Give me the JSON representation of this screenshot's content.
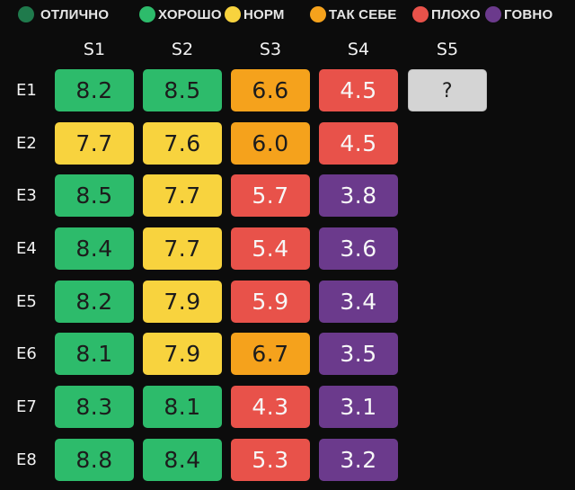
{
  "legend": {
    "items": [
      {
        "label": "ОТЛИЧНО",
        "color": "#1f7a4c",
        "icon": "circle-dot-icon"
      },
      {
        "label": "ХОРОШО",
        "color": "#2dbb6b",
        "icon": "circle-dot-icon"
      },
      {
        "label": "НОРМ",
        "color": "#f8d33e",
        "icon": "circle-dot-icon"
      },
      {
        "label": "ТАК СЕБЕ",
        "color": "#f5a21c",
        "icon": "circle-dot-icon"
      },
      {
        "label": "ПЛОХО",
        "color": "#e8524a",
        "icon": "circle-dot-icon"
      },
      {
        "label": "ГОВНО",
        "color": "#6b3a8c",
        "icon": "circle-dot-icon"
      }
    ]
  },
  "colors": {
    "background": "#0c0c0c",
    "good": "#2dbb6b",
    "norm": "#f8d33e",
    "meh": "#f5a21c",
    "bad": "#e8524a",
    "awful": "#6b3a8c",
    "unknown": "#d4d4d4"
  },
  "table": {
    "columns": [
      "S1",
      "S2",
      "S3",
      "S4",
      "S5"
    ],
    "rows": [
      "E1",
      "E2",
      "E3",
      "E4",
      "E5",
      "E6",
      "E7",
      "E8"
    ]
  },
  "chart_data": {
    "type": "heatmap",
    "title": "",
    "xlabel": "",
    "ylabel": "",
    "x": [
      "S1",
      "S2",
      "S3",
      "S4",
      "S5"
    ],
    "y": [
      "E1",
      "E2",
      "E3",
      "E4",
      "E5",
      "E6",
      "E7",
      "E8"
    ],
    "legend": [
      "ОТЛИЧНО",
      "ХОРОШО",
      "НОРМ",
      "ТАК СЕБЕ",
      "ПЛОХО",
      "ГОВНО"
    ],
    "legend_position": "top",
    "values": [
      [
        "8.2",
        "8.5",
        "6.6",
        "4.5",
        "?"
      ],
      [
        "7.7",
        "7.6",
        "6.0",
        "4.5",
        null
      ],
      [
        "8.5",
        "7.7",
        "5.7",
        "3.8",
        null
      ],
      [
        "8.4",
        "7.7",
        "5.4",
        "3.6",
        null
      ],
      [
        "8.2",
        "7.9",
        "5.9",
        "3.4",
        null
      ],
      [
        "8.1",
        "7.9",
        "6.7",
        "3.5",
        null
      ],
      [
        "8.3",
        "8.1",
        "4.3",
        "3.1",
        null
      ],
      [
        "8.8",
        "8.4",
        "5.3",
        "3.2",
        null
      ]
    ],
    "categories": [
      [
        "ХОРОШО",
        "ХОРОШО",
        "ТАК СЕБЕ",
        "ПЛОХО",
        "unknown"
      ],
      [
        "НОРМ",
        "НОРМ",
        "ТАК СЕБЕ",
        "ПЛОХО",
        null
      ],
      [
        "ХОРОШО",
        "НОРМ",
        "ПЛОХО",
        "ГОВНО",
        null
      ],
      [
        "ХОРОШО",
        "НОРМ",
        "ПЛОХО",
        "ГОВНО",
        null
      ],
      [
        "ХОРОШО",
        "НОРМ",
        "ПЛОХО",
        "ГОВНО",
        null
      ],
      [
        "ХОРОШО",
        "НОРМ",
        "ТАК СЕБЕ",
        "ГОВНО",
        null
      ],
      [
        "ХОРОШО",
        "ХОРОШО",
        "ПЛОХО",
        "ГОВНО",
        null
      ],
      [
        "ХОРОШО",
        "ХОРОШО",
        "ПЛОХО",
        "ГОВНО",
        null
      ]
    ]
  }
}
